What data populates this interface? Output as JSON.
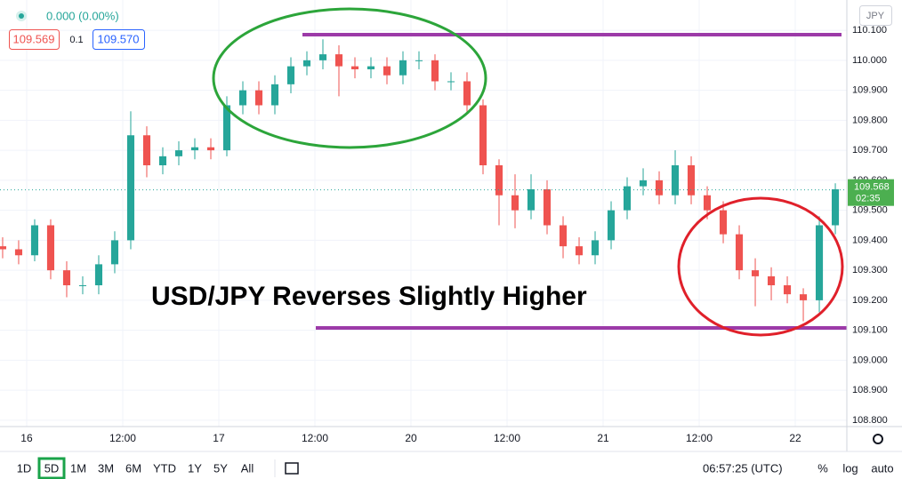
{
  "header": {
    "change": "0.000 (0.00%)",
    "bid": "109.569",
    "spread": "0.1",
    "ask": "109.570",
    "currency": "JPY"
  },
  "chart_data": {
    "type": "candlestick",
    "title": "USD/JPY Reverses Slightly Higher",
    "x": [
      -3,
      -1,
      1,
      3,
      5,
      7,
      9,
      11,
      13,
      15,
      17,
      19,
      21,
      23,
      25,
      27,
      29,
      31,
      33,
      35,
      37,
      39,
      41,
      43,
      45,
      47,
      49,
      51,
      53,
      55,
      57,
      59,
      61,
      63,
      65,
      67,
      69,
      71,
      73,
      75,
      77,
      79,
      81,
      83,
      85,
      87,
      89,
      91,
      93,
      95,
      97,
      99,
      101
    ],
    "open": [
      109.38,
      109.37,
      109.35,
      109.45,
      109.3,
      109.25,
      109.25,
      109.32,
      109.4,
      109.75,
      109.65,
      109.68,
      109.7,
      109.71,
      109.7,
      109.85,
      109.9,
      109.85,
      109.92,
      109.98,
      110.0,
      110.02,
      109.98,
      109.97,
      109.98,
      109.95,
      110.0,
      110.0,
      109.93,
      109.93,
      109.85,
      109.65,
      109.55,
      109.5,
      109.57,
      109.45,
      109.38,
      109.35,
      109.4,
      109.5,
      109.58,
      109.6,
      109.55,
      109.65,
      109.55,
      109.5,
      109.42,
      109.3,
      109.28,
      109.25,
      109.22,
      109.2,
      109.45
    ],
    "high": [
      109.41,
      109.4,
      109.47,
      109.47,
      109.33,
      109.28,
      109.35,
      109.43,
      109.83,
      109.78,
      109.71,
      109.73,
      109.74,
      109.74,
      109.88,
      109.93,
      109.93,
      109.95,
      110.01,
      110.03,
      110.07,
      110.05,
      110.01,
      110.01,
      110.01,
      110.03,
      110.03,
      110.02,
      109.96,
      109.96,
      109.87,
      109.67,
      109.62,
      109.62,
      109.6,
      109.48,
      109.41,
      109.43,
      109.53,
      109.61,
      109.64,
      109.63,
      109.7,
      109.68,
      109.58,
      109.53,
      109.45,
      109.34,
      109.31,
      109.28,
      109.24,
      109.48,
      109.59
    ],
    "low": [
      109.34,
      109.32,
      109.33,
      109.27,
      109.21,
      109.22,
      109.22,
      109.29,
      109.37,
      109.61,
      109.62,
      109.65,
      109.67,
      109.67,
      109.68,
      109.82,
      109.82,
      109.82,
      109.89,
      109.95,
      109.97,
      109.88,
      109.94,
      109.94,
      109.92,
      109.92,
      109.97,
      109.9,
      109.9,
      109.82,
      109.62,
      109.45,
      109.44,
      109.47,
      109.42,
      109.34,
      109.32,
      109.32,
      109.37,
      109.47,
      109.55,
      109.52,
      109.52,
      109.52,
      109.47,
      109.39,
      109.27,
      109.18,
      109.2,
      109.19,
      109.13,
      109.16,
      109.42
    ],
    "close": [
      109.37,
      109.35,
      109.45,
      109.3,
      109.25,
      109.25,
      109.32,
      109.4,
      109.75,
      109.65,
      109.68,
      109.7,
      109.71,
      109.7,
      109.85,
      109.9,
      109.85,
      109.92,
      109.98,
      110.0,
      110.02,
      109.98,
      109.97,
      109.98,
      109.95,
      110.0,
      110.0,
      109.93,
      109.93,
      109.85,
      109.65,
      109.55,
      109.5,
      109.57,
      109.45,
      109.38,
      109.35,
      109.4,
      109.5,
      109.58,
      109.6,
      109.55,
      109.65,
      109.55,
      109.5,
      109.42,
      109.3,
      109.28,
      109.25,
      109.22,
      109.2,
      109.45,
      109.57
    ],
    "up_color": "#26a69a",
    "down_color": "#ef5350",
    "xlim": [
      -3.33,
      102.44
    ],
    "xticks": [
      {
        "value": 0,
        "label": "16"
      },
      {
        "value": 12,
        "label": "12:00"
      },
      {
        "value": 24,
        "label": "17"
      },
      {
        "value": 36,
        "label": "12:00"
      },
      {
        "value": 48,
        "label": "20"
      },
      {
        "value": 60,
        "label": "12:00"
      },
      {
        "value": 72,
        "label": "21"
      },
      {
        "value": 84,
        "label": "12:00"
      },
      {
        "value": 96,
        "label": "22"
      }
    ],
    "ylim": [
      108.779,
      110.201
    ],
    "yticks": [
      {
        "value": 108.8,
        "label": "108.800"
      },
      {
        "value": 108.9,
        "label": "108.900"
      },
      {
        "value": 109.0,
        "label": "109.000"
      },
      {
        "value": 109.1,
        "label": "109.100"
      },
      {
        "value": 109.2,
        "label": "109.200"
      },
      {
        "value": 109.3,
        "label": "109.300"
      },
      {
        "value": 109.4,
        "label": "109.400"
      },
      {
        "value": 109.5,
        "label": "109.500"
      },
      {
        "value": 109.6,
        "label": "109.600"
      },
      {
        "value": 109.7,
        "label": "109.700"
      },
      {
        "value": 109.8,
        "label": "109.800"
      },
      {
        "value": 109.9,
        "label": "109.900"
      },
      {
        "value": 110.0,
        "label": "110.000"
      },
      {
        "value": 110.1,
        "label": "110.100"
      }
    ],
    "grid": true,
    "last_price": 109.568,
    "countdown": "02:35",
    "price_tag_color": "#4caf50"
  },
  "footer": {
    "ranges": [
      "1D",
      "5D",
      "1M",
      "3M",
      "6M",
      "YTD",
      "1Y",
      "5Y",
      "All"
    ],
    "active_range": 1,
    "time": "06:57:25 (UTC)",
    "options": [
      "%",
      "log",
      "auto"
    ]
  }
}
